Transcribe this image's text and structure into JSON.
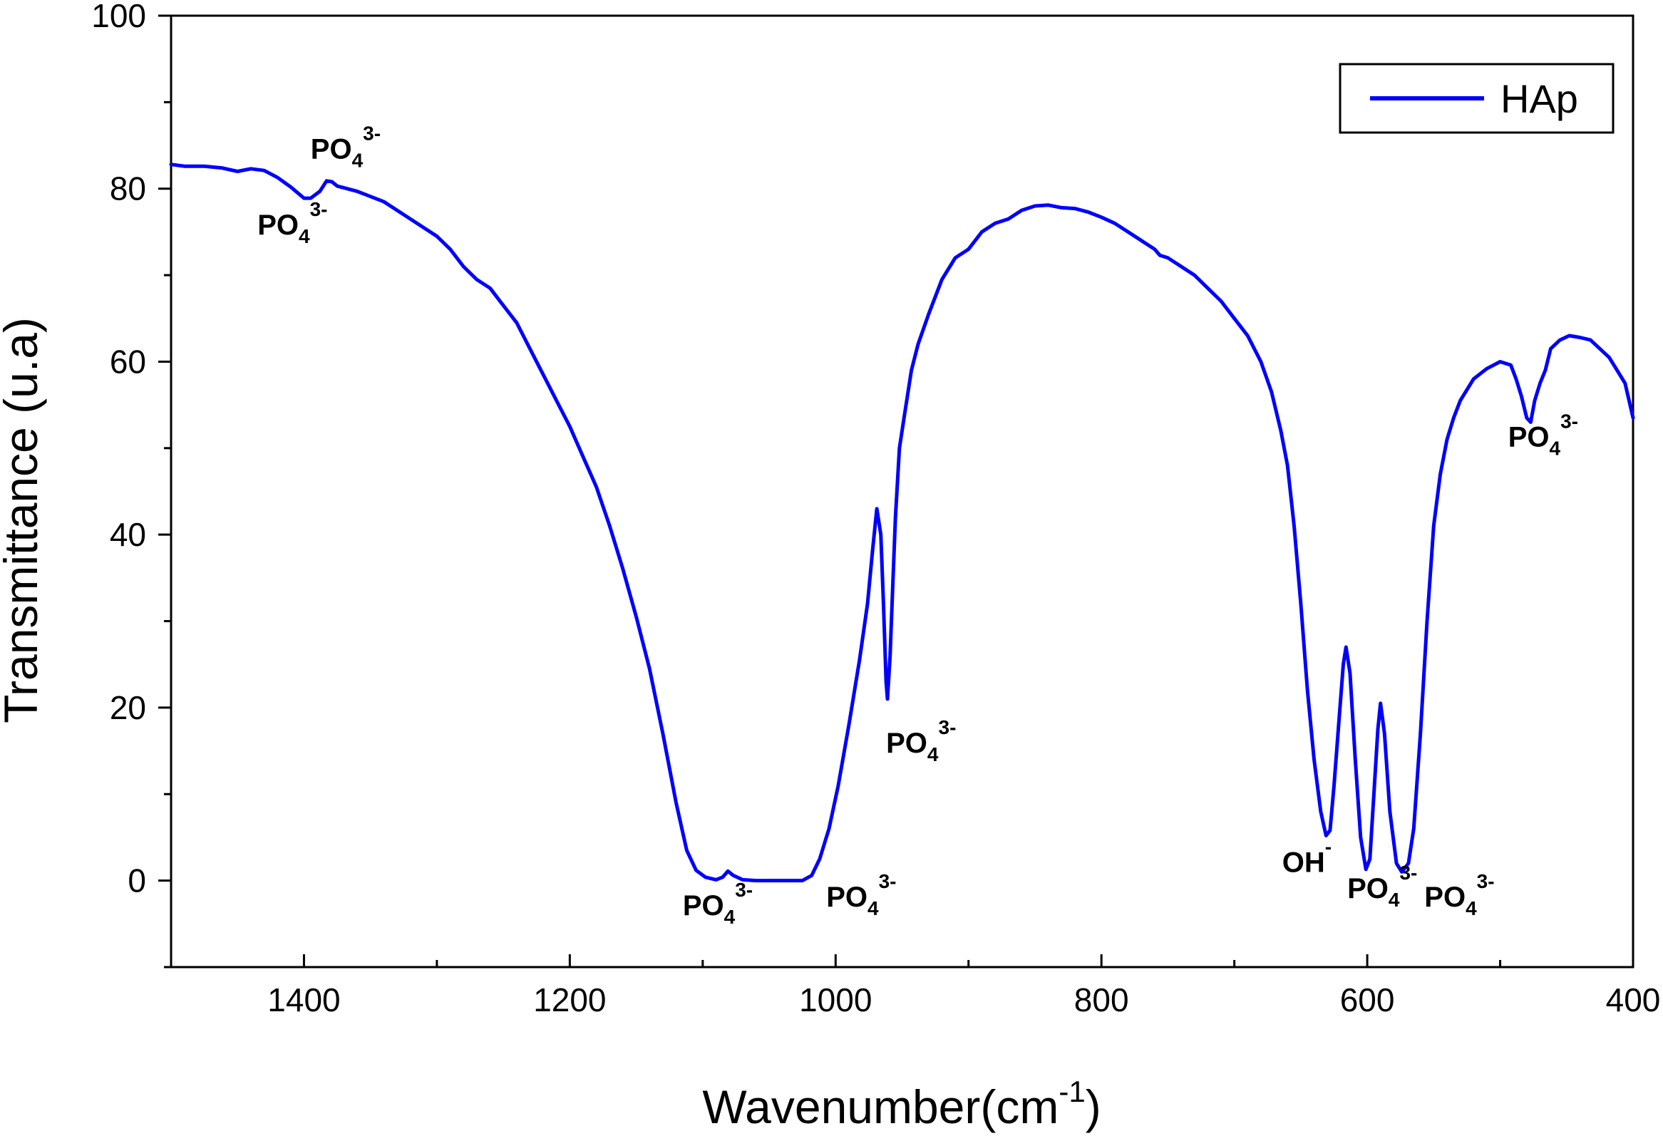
{
  "chart_data": {
    "type": "line",
    "xlabel": "Wavenumber(cm",
    "xlabel_sup": "-1",
    "xlabel_tail": ")",
    "ylabel": "Transmittance (u.a)",
    "xlim": [
      1500,
      400
    ],
    "ylim": [
      -10,
      100
    ],
    "x_ticks": [
      1400,
      1200,
      1000,
      800,
      600,
      400
    ],
    "x_tick_labels": [
      "1400",
      "1200",
      "1000",
      "800",
      "600",
      "400"
    ],
    "y_ticks": [
      0,
      20,
      40,
      60,
      80,
      100
    ],
    "y_tick_labels": [
      "0",
      "20",
      "40",
      "60",
      "80",
      "100"
    ],
    "grid": false,
    "legend_position": "top-right",
    "series": [
      {
        "name": "HAp",
        "color": "#0000ff",
        "points": [
          [
            1500,
            82.8
          ],
          [
            1490,
            82.6
          ],
          [
            1475,
            82.6
          ],
          [
            1462,
            82.4
          ],
          [
            1450,
            82.0
          ],
          [
            1440,
            82.3
          ],
          [
            1430,
            82.1
          ],
          [
            1420,
            81.3
          ],
          [
            1410,
            80.2
          ],
          [
            1400,
            78.9
          ],
          [
            1395,
            78.9
          ],
          [
            1388,
            79.7
          ],
          [
            1383,
            80.9
          ],
          [
            1379,
            80.8
          ],
          [
            1375,
            80.3
          ],
          [
            1360,
            79.7
          ],
          [
            1340,
            78.5
          ],
          [
            1320,
            76.5
          ],
          [
            1300,
            74.5
          ],
          [
            1290,
            73.0
          ],
          [
            1280,
            71.0
          ],
          [
            1270,
            69.5
          ],
          [
            1260,
            68.5
          ],
          [
            1250,
            66.5
          ],
          [
            1240,
            64.5
          ],
          [
            1230,
            61.5
          ],
          [
            1220,
            58.5
          ],
          [
            1210,
            55.5
          ],
          [
            1200,
            52.5
          ],
          [
            1190,
            49.0
          ],
          [
            1180,
            45.5
          ],
          [
            1170,
            41.0
          ],
          [
            1160,
            36.0
          ],
          [
            1150,
            30.5
          ],
          [
            1140,
            24.5
          ],
          [
            1130,
            17.0
          ],
          [
            1120,
            9.0
          ],
          [
            1112,
            3.5
          ],
          [
            1105,
            1.2
          ],
          [
            1098,
            0.4
          ],
          [
            1090,
            0.1
          ],
          [
            1085,
            0.4
          ],
          [
            1081,
            1.1
          ],
          [
            1077,
            0.6
          ],
          [
            1070,
            0.1
          ],
          [
            1060,
            0.0
          ],
          [
            1040,
            0.0
          ],
          [
            1025,
            0.0
          ],
          [
            1018,
            0.6
          ],
          [
            1012,
            2.5
          ],
          [
            1005,
            6.0
          ],
          [
            998,
            11.0
          ],
          [
            990,
            18.0
          ],
          [
            982,
            25.5
          ],
          [
            976,
            32.0
          ],
          [
            972,
            38.5
          ],
          [
            969,
            43.0
          ],
          [
            966,
            40.0
          ],
          [
            964,
            32.0
          ],
          [
            962,
            23.0
          ],
          [
            961,
            21.0
          ],
          [
            959,
            26.0
          ],
          [
            957,
            34.0
          ],
          [
            955,
            42.0
          ],
          [
            952,
            50.0
          ],
          [
            948,
            54.0
          ],
          [
            943,
            59.0
          ],
          [
            938,
            62.0
          ],
          [
            930,
            65.5
          ],
          [
            920,
            69.5
          ],
          [
            910,
            72.0
          ],
          [
            900,
            73.0
          ],
          [
            890,
            75.0
          ],
          [
            880,
            76.0
          ],
          [
            870,
            76.5
          ],
          [
            860,
            77.5
          ],
          [
            850,
            78.0
          ],
          [
            840,
            78.1
          ],
          [
            830,
            77.8
          ],
          [
            820,
            77.7
          ],
          [
            810,
            77.3
          ],
          [
            800,
            76.7
          ],
          [
            790,
            76.0
          ],
          [
            780,
            75.0
          ],
          [
            770,
            74.0
          ],
          [
            760,
            73.0
          ],
          [
            756,
            72.3
          ],
          [
            750,
            72.0
          ],
          [
            740,
            71.0
          ],
          [
            730,
            70.0
          ],
          [
            720,
            68.5
          ],
          [
            710,
            67.0
          ],
          [
            700,
            65.0
          ],
          [
            690,
            63.0
          ],
          [
            680,
            60.0
          ],
          [
            672,
            56.5
          ],
          [
            665,
            52.0
          ],
          [
            660,
            48.0
          ],
          [
            655,
            41.0
          ],
          [
            650,
            32.0
          ],
          [
            645,
            22.0
          ],
          [
            640,
            14.0
          ],
          [
            635,
            8.0
          ],
          [
            631,
            5.2
          ],
          [
            628,
            5.8
          ],
          [
            625,
            11.0
          ],
          [
            621,
            19.0
          ],
          [
            618,
            25.0
          ],
          [
            616,
            27.0
          ],
          [
            613,
            24.0
          ],
          [
            609,
            14.0
          ],
          [
            605,
            5.0
          ],
          [
            601,
            1.3
          ],
          [
            598,
            2.5
          ],
          [
            595,
            10.0
          ],
          [
            592,
            17.5
          ],
          [
            590,
            20.5
          ],
          [
            587,
            17.0
          ],
          [
            583,
            8.0
          ],
          [
            578,
            2.0
          ],
          [
            574,
            1.0
          ],
          [
            569,
            2.0
          ],
          [
            565,
            6.0
          ],
          [
            560,
            17.0
          ],
          [
            555,
            30.0
          ],
          [
            550,
            41.0
          ],
          [
            545,
            47.0
          ],
          [
            540,
            51.0
          ],
          [
            535,
            53.5
          ],
          [
            530,
            55.5
          ],
          [
            520,
            58.0
          ],
          [
            510,
            59.2
          ],
          [
            500,
            60.0
          ],
          [
            492,
            59.6
          ],
          [
            488,
            58.0
          ],
          [
            484,
            56.0
          ],
          [
            480,
            53.5
          ],
          [
            477,
            53.0
          ],
          [
            474,
            55.5
          ],
          [
            470,
            57.5
          ],
          [
            466,
            59.0
          ],
          [
            462,
            61.5
          ],
          [
            455,
            62.5
          ],
          [
            448,
            63.0
          ],
          [
            440,
            62.8
          ],
          [
            432,
            62.5
          ],
          [
            425,
            61.5
          ],
          [
            418,
            60.5
          ],
          [
            412,
            59.0
          ],
          [
            406,
            57.5
          ],
          [
            400,
            53.5
          ]
        ]
      }
    ],
    "annotations": [
      {
        "base": "PO",
        "sub": "4",
        "sup": "3-",
        "x": 1395,
        "y": 83.5
      },
      {
        "base": "PO",
        "sub": "4",
        "sup": "3-",
        "x": 1435,
        "y": 74.7
      },
      {
        "base": "PO",
        "sub": "4",
        "sup": "3-",
        "x": 1115,
        "y": -4.0
      },
      {
        "base": "PO",
        "sub": "4",
        "sup": "3-",
        "x": 1007,
        "y": -3.0
      },
      {
        "base": "PO",
        "sub": "4",
        "sup": "3-",
        "x": 962,
        "y": 14.8
      },
      {
        "base": "OH",
        "sub": "",
        "sup": "-",
        "x": 664,
        "y": 1.0
      },
      {
        "base": "PO",
        "sub": "4",
        "sup": "3-",
        "x": 615,
        "y": -2.0
      },
      {
        "base": "PO",
        "sub": "4",
        "sup": "3-",
        "x": 557,
        "y": -3.0
      },
      {
        "base": "PO",
        "sub": "4",
        "sup": "3-",
        "x": 494,
        "y": 50.2
      }
    ]
  }
}
